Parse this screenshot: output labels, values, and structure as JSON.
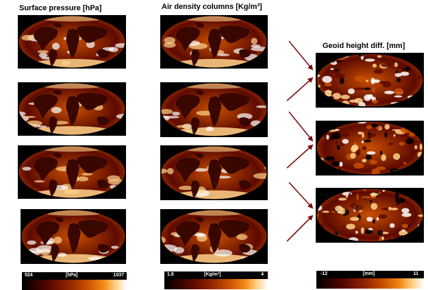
{
  "titles": {
    "pressure": "Surface pressure [hPa]",
    "density": "Air density columns [Kg/m³]",
    "geoid": "Geoid height diff. [mm]"
  },
  "colorbars": {
    "pressure": {
      "min": "524",
      "unit": "[hPa]",
      "max": "1037"
    },
    "density": {
      "min": "1.8",
      "unit": "[Kg/m³]",
      "max": "4"
    },
    "geoid": {
      "min": "-12",
      "unit": "[mm]",
      "max": "11"
    }
  },
  "colormap": [
    "#000000",
    "#5e0a00",
    "#c84f00",
    "#ffd48a",
    "#ffffff"
  ]
}
